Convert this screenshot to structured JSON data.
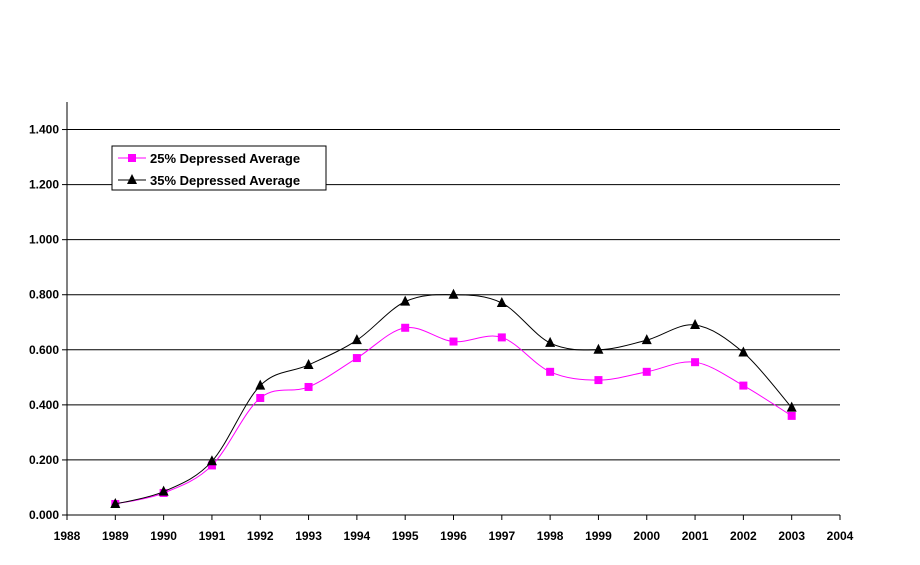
{
  "chart_data": {
    "type": "line",
    "title": "",
    "xlabel": "",
    "ylabel": "",
    "xlim": [
      1988,
      2004
    ],
    "ylim": [
      0,
      1.5
    ],
    "xticks": [
      "1988",
      "1989",
      "1990",
      "1991",
      "1992",
      "1993",
      "1994",
      "1995",
      "1996",
      "1997",
      "1998",
      "1999",
      "2000",
      "2001",
      "2002",
      "2003",
      "2004"
    ],
    "yticks": [
      "0.000",
      "0.200",
      "0.400",
      "0.600",
      "0.800",
      "1.000",
      "1.200",
      "1.400"
    ],
    "grid": "horizontal",
    "legend_position": "top-left",
    "x": [
      1989,
      1990,
      1991,
      1992,
      1993,
      1994,
      1995,
      1996,
      1997,
      1998,
      1999,
      2000,
      2001,
      2002,
      2003
    ],
    "series": [
      {
        "name": "25% Depressed Average",
        "color": "#ff00ff",
        "marker": "square",
        "values": [
          0.04,
          0.08,
          0.18,
          0.425,
          0.465,
          0.57,
          0.68,
          0.63,
          0.645,
          0.52,
          0.49,
          0.52,
          0.555,
          0.47,
          0.36
        ]
      },
      {
        "name": "35% Depressed Average",
        "color": "#000000",
        "marker": "triangle",
        "values": [
          0.04,
          0.085,
          0.195,
          0.47,
          0.545,
          0.635,
          0.775,
          0.8,
          0.77,
          0.625,
          0.6,
          0.635,
          0.69,
          0.59,
          0.39
        ]
      }
    ]
  }
}
